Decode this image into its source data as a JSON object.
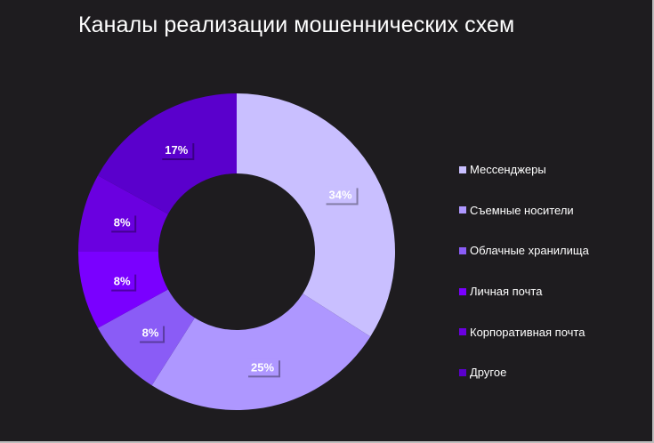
{
  "chart_data": {
    "type": "pie",
    "title": "Каналы реализации мошеннических схем",
    "categories": [
      "Мессенджеры",
      "Съемные носители",
      "Облачные хранилища",
      "Личная почта",
      "Корпоративная почта",
      "Другое"
    ],
    "values": [
      34,
      25,
      8,
      8,
      8,
      17
    ],
    "data_labels": [
      "34%",
      "25%",
      "8%",
      "8%",
      "8%",
      "17%"
    ],
    "colors": [
      "#c9bfff",
      "#ae97ff",
      "#8a5cf6",
      "#7a00ff",
      "#6a00e0",
      "#5a00cc"
    ],
    "donut": true,
    "legend_position": "right"
  }
}
